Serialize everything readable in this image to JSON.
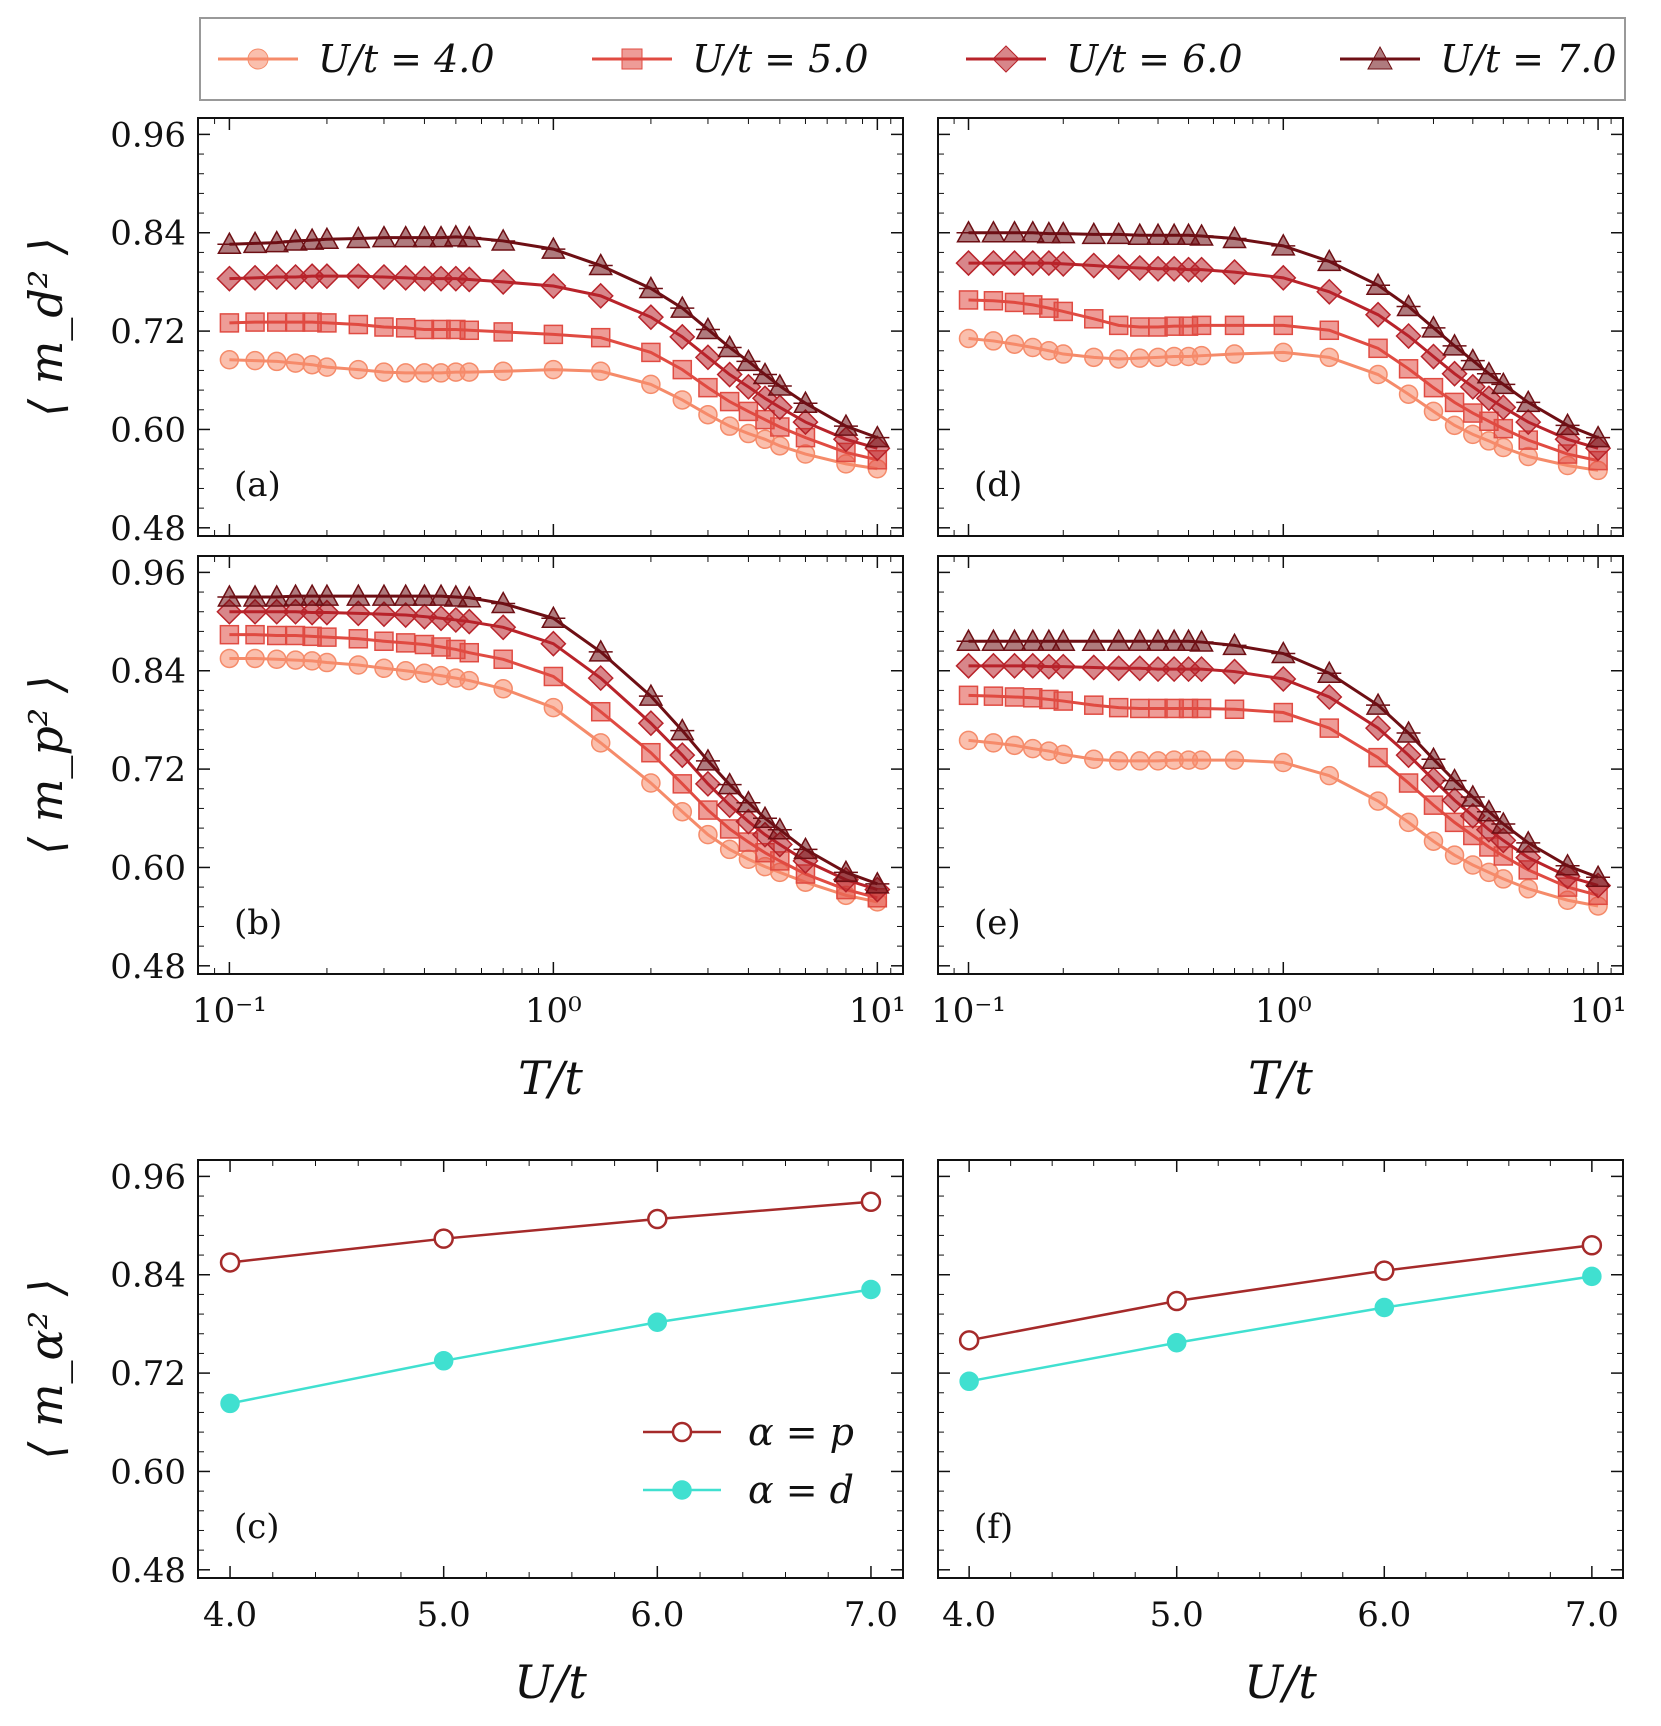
{
  "legend": {
    "entries": [
      {
        "label": "U/t = 4.0",
        "color": "#f58b6a",
        "marker": "circle"
      },
      {
        "label": "U/t = 5.0",
        "color": "#e04b42",
        "marker": "square"
      },
      {
        "label": "U/t = 6.0",
        "color": "#b8232a",
        "marker": "diamond"
      },
      {
        "label": "U/t = 7.0",
        "color": "#6e0f14",
        "marker": "triangle"
      }
    ]
  },
  "chart_data": [
    {
      "id": "a",
      "type": "line",
      "tag": "(a)",
      "xscale": "log",
      "xlim": [
        0.08,
        12
      ],
      "ylim": [
        0.47,
        0.98
      ],
      "ylabel": "⟨ m_d² ⟩",
      "xlabel": "",
      "yticks": [
        "0.48",
        "0.60",
        "0.72",
        "0.84",
        "0.96"
      ],
      "xticks": [],
      "x": [
        0.1,
        0.12,
        0.14,
        0.16,
        0.18,
        0.2,
        0.25,
        0.3,
        0.35,
        0.4,
        0.45,
        0.5,
        0.55,
        0.7,
        1.0,
        1.4,
        2.0,
        2.5,
        3.0,
        3.5,
        4.0,
        4.5,
        5.0,
        6.0,
        8.0,
        10.0
      ],
      "series": [
        {
          "name": "U/t = 4.0",
          "values": [
            0.685,
            0.684,
            0.683,
            0.681,
            0.679,
            0.676,
            0.673,
            0.67,
            0.669,
            0.669,
            0.669,
            0.67,
            0.67,
            0.671,
            0.673,
            0.671,
            0.655,
            0.636,
            0.618,
            0.604,
            0.595,
            0.588,
            0.58,
            0.57,
            0.558,
            0.552
          ]
        },
        {
          "name": "U/t = 5.0",
          "values": [
            0.73,
            0.731,
            0.731,
            0.731,
            0.731,
            0.73,
            0.728,
            0.725,
            0.724,
            0.722,
            0.722,
            0.722,
            0.721,
            0.719,
            0.716,
            0.712,
            0.694,
            0.673,
            0.651,
            0.634,
            0.622,
            0.612,
            0.603,
            0.59,
            0.572,
            0.563
          ]
        },
        {
          "name": "U/t = 6.0",
          "values": [
            0.784,
            0.785,
            0.786,
            0.786,
            0.787,
            0.787,
            0.787,
            0.786,
            0.785,
            0.784,
            0.784,
            0.784,
            0.783,
            0.78,
            0.775,
            0.763,
            0.737,
            0.713,
            0.688,
            0.667,
            0.652,
            0.638,
            0.627,
            0.609,
            0.588,
            0.577
          ]
        },
        {
          "name": "U/t = 7.0",
          "values": [
            0.826,
            0.827,
            0.828,
            0.83,
            0.831,
            0.832,
            0.833,
            0.834,
            0.834,
            0.834,
            0.834,
            0.835,
            0.834,
            0.83,
            0.82,
            0.8,
            0.772,
            0.748,
            0.722,
            0.7,
            0.683,
            0.667,
            0.653,
            0.632,
            0.604,
            0.59
          ]
        }
      ]
    },
    {
      "id": "b",
      "type": "line",
      "tag": "(b)",
      "xscale": "log",
      "xlim": [
        0.08,
        12
      ],
      "ylim": [
        0.47,
        0.98
      ],
      "ylabel": "⟨ m_p² ⟩",
      "xlabel": "T/t",
      "yticks": [
        "0.48",
        "0.60",
        "0.72",
        "0.84",
        "0.96"
      ],
      "xticks": [
        "10⁻¹",
        "10⁰",
        "10¹"
      ],
      "x": [
        0.1,
        0.12,
        0.14,
        0.16,
        0.18,
        0.2,
        0.25,
        0.3,
        0.35,
        0.4,
        0.45,
        0.5,
        0.55,
        0.7,
        1.0,
        1.4,
        2.0,
        2.5,
        3.0,
        3.5,
        4.0,
        4.5,
        5.0,
        6.0,
        8.0,
        10.0
      ],
      "series": [
        {
          "name": "U/t = 4.0",
          "values": [
            0.855,
            0.855,
            0.854,
            0.853,
            0.852,
            0.85,
            0.847,
            0.843,
            0.84,
            0.837,
            0.834,
            0.831,
            0.828,
            0.818,
            0.795,
            0.752,
            0.703,
            0.668,
            0.64,
            0.622,
            0.61,
            0.601,
            0.594,
            0.582,
            0.566,
            0.558
          ]
        },
        {
          "name": "U/t = 5.0",
          "values": [
            0.884,
            0.884,
            0.883,
            0.883,
            0.882,
            0.881,
            0.879,
            0.876,
            0.874,
            0.872,
            0.869,
            0.866,
            0.862,
            0.854,
            0.833,
            0.79,
            0.74,
            0.702,
            0.67,
            0.647,
            0.631,
            0.618,
            0.608,
            0.592,
            0.573,
            0.563
          ]
        },
        {
          "name": "U/t = 6.0",
          "values": [
            0.912,
            0.912,
            0.912,
            0.912,
            0.911,
            0.911,
            0.91,
            0.909,
            0.908,
            0.906,
            0.904,
            0.902,
            0.9,
            0.893,
            0.873,
            0.831,
            0.776,
            0.737,
            0.702,
            0.676,
            0.656,
            0.64,
            0.628,
            0.608,
            0.585,
            0.573
          ]
        },
        {
          "name": "U/t = 7.0",
          "values": [
            0.93,
            0.93,
            0.93,
            0.931,
            0.931,
            0.931,
            0.931,
            0.931,
            0.931,
            0.931,
            0.931,
            0.93,
            0.929,
            0.922,
            0.904,
            0.863,
            0.809,
            0.767,
            0.73,
            0.701,
            0.679,
            0.66,
            0.646,
            0.622,
            0.594,
            0.58
          ]
        }
      ]
    },
    {
      "id": "c",
      "type": "line",
      "tag": "(c)",
      "xscale": "linear",
      "xlim": [
        3.85,
        7.15
      ],
      "ylim": [
        0.47,
        0.98
      ],
      "ylabel": "⟨ m_α² ⟩",
      "xlabel": "U/t",
      "yticks": [
        "0.48",
        "0.60",
        "0.72",
        "0.84",
        "0.96"
      ],
      "xticks": [
        "4.0",
        "5.0",
        "6.0",
        "7.0"
      ],
      "x": [
        4.0,
        5.0,
        6.0,
        7.0
      ],
      "series": [
        {
          "name": "α = p",
          "values": [
            0.855,
            0.884,
            0.908,
            0.929
          ],
          "color": "#a52a2a",
          "marker": "open-circle"
        },
        {
          "name": "α = d",
          "values": [
            0.683,
            0.735,
            0.782,
            0.822
          ],
          "color": "#40e0d0",
          "marker": "filled-circle"
        }
      ],
      "legend_entries": [
        "α = p",
        "α = d"
      ]
    },
    {
      "id": "d",
      "type": "line",
      "tag": "(d)",
      "xscale": "log",
      "xlim": [
        0.08,
        12
      ],
      "ylim": [
        0.47,
        0.98
      ],
      "ylabel": "",
      "xlabel": "",
      "yticks": [],
      "xticks": [],
      "x": [
        0.1,
        0.12,
        0.14,
        0.16,
        0.18,
        0.2,
        0.25,
        0.3,
        0.35,
        0.4,
        0.45,
        0.5,
        0.55,
        0.7,
        1.0,
        1.4,
        2.0,
        2.5,
        3.0,
        3.5,
        4.0,
        4.5,
        5.0,
        6.0,
        8.0,
        10.0
      ],
      "series": [
        {
          "name": "U/t = 4.0",
          "values": [
            0.711,
            0.708,
            0.704,
            0.7,
            0.696,
            0.692,
            0.688,
            0.686,
            0.687,
            0.688,
            0.689,
            0.689,
            0.69,
            0.692,
            0.694,
            0.688,
            0.667,
            0.643,
            0.622,
            0.605,
            0.594,
            0.586,
            0.578,
            0.567,
            0.556,
            0.55
          ]
        },
        {
          "name": "U/t = 5.0",
          "values": [
            0.758,
            0.757,
            0.755,
            0.752,
            0.748,
            0.744,
            0.735,
            0.727,
            0.725,
            0.725,
            0.726,
            0.726,
            0.727,
            0.727,
            0.727,
            0.721,
            0.699,
            0.674,
            0.651,
            0.633,
            0.62,
            0.61,
            0.601,
            0.587,
            0.57,
            0.562
          ]
        },
        {
          "name": "U/t = 6.0",
          "values": [
            0.803,
            0.803,
            0.803,
            0.803,
            0.803,
            0.802,
            0.8,
            0.798,
            0.797,
            0.796,
            0.796,
            0.795,
            0.795,
            0.792,
            0.785,
            0.768,
            0.74,
            0.714,
            0.689,
            0.668,
            0.652,
            0.638,
            0.627,
            0.609,
            0.588,
            0.577
          ]
        },
        {
          "name": "U/t = 7.0",
          "values": [
            0.84,
            0.84,
            0.84,
            0.84,
            0.839,
            0.839,
            0.838,
            0.838,
            0.837,
            0.837,
            0.837,
            0.837,
            0.836,
            0.833,
            0.824,
            0.805,
            0.776,
            0.75,
            0.724,
            0.702,
            0.684,
            0.668,
            0.655,
            0.633,
            0.605,
            0.59
          ]
        }
      ]
    },
    {
      "id": "e",
      "type": "line",
      "tag": "(e)",
      "xscale": "log",
      "xlim": [
        0.08,
        12
      ],
      "ylim": [
        0.47,
        0.98
      ],
      "ylabel": "",
      "xlabel": "T/t",
      "yticks": [],
      "xticks": [
        "10⁻¹",
        "10⁰",
        "10¹"
      ],
      "x": [
        0.1,
        0.12,
        0.14,
        0.16,
        0.18,
        0.2,
        0.25,
        0.3,
        0.35,
        0.4,
        0.45,
        0.5,
        0.55,
        0.7,
        1.0,
        1.4,
        2.0,
        2.5,
        3.0,
        3.5,
        4.0,
        4.5,
        5.0,
        6.0,
        8.0,
        10.0
      ],
      "series": [
        {
          "name": "U/t = 4.0",
          "values": [
            0.755,
            0.752,
            0.749,
            0.745,
            0.742,
            0.738,
            0.732,
            0.73,
            0.73,
            0.73,
            0.731,
            0.731,
            0.731,
            0.731,
            0.728,
            0.712,
            0.681,
            0.655,
            0.632,
            0.615,
            0.603,
            0.594,
            0.586,
            0.574,
            0.56,
            0.553
          ]
        },
        {
          "name": "U/t = 5.0",
          "values": [
            0.81,
            0.809,
            0.808,
            0.807,
            0.805,
            0.803,
            0.798,
            0.795,
            0.794,
            0.794,
            0.794,
            0.794,
            0.794,
            0.793,
            0.789,
            0.77,
            0.734,
            0.703,
            0.676,
            0.655,
            0.639,
            0.625,
            0.614,
            0.597,
            0.576,
            0.566
          ]
        },
        {
          "name": "U/t = 6.0",
          "values": [
            0.846,
            0.846,
            0.846,
            0.846,
            0.845,
            0.845,
            0.844,
            0.843,
            0.843,
            0.842,
            0.842,
            0.842,
            0.842,
            0.839,
            0.83,
            0.808,
            0.77,
            0.737,
            0.707,
            0.682,
            0.663,
            0.646,
            0.633,
            0.612,
            0.589,
            0.578
          ]
        },
        {
          "name": "U/t = 7.0",
          "values": [
            0.876,
            0.876,
            0.876,
            0.876,
            0.876,
            0.876,
            0.876,
            0.876,
            0.876,
            0.876,
            0.876,
            0.876,
            0.875,
            0.871,
            0.861,
            0.837,
            0.798,
            0.764,
            0.732,
            0.706,
            0.686,
            0.668,
            0.653,
            0.63,
            0.602,
            0.588
          ]
        }
      ]
    },
    {
      "id": "f",
      "type": "line",
      "tag": "(f)",
      "xscale": "linear",
      "xlim": [
        3.85,
        7.15
      ],
      "ylim": [
        0.47,
        0.98
      ],
      "ylabel": "",
      "xlabel": "U/t",
      "yticks": [],
      "xticks": [
        "4.0",
        "5.0",
        "6.0",
        "7.0"
      ],
      "x": [
        4.0,
        5.0,
        6.0,
        7.0
      ],
      "series": [
        {
          "name": "α = p",
          "values": [
            0.76,
            0.808,
            0.845,
            0.876
          ],
          "color": "#a52a2a",
          "marker": "open-circle"
        },
        {
          "name": "α = d",
          "values": [
            0.71,
            0.757,
            0.8,
            0.838
          ],
          "color": "#40e0d0",
          "marker": "filled-circle"
        }
      ]
    }
  ]
}
